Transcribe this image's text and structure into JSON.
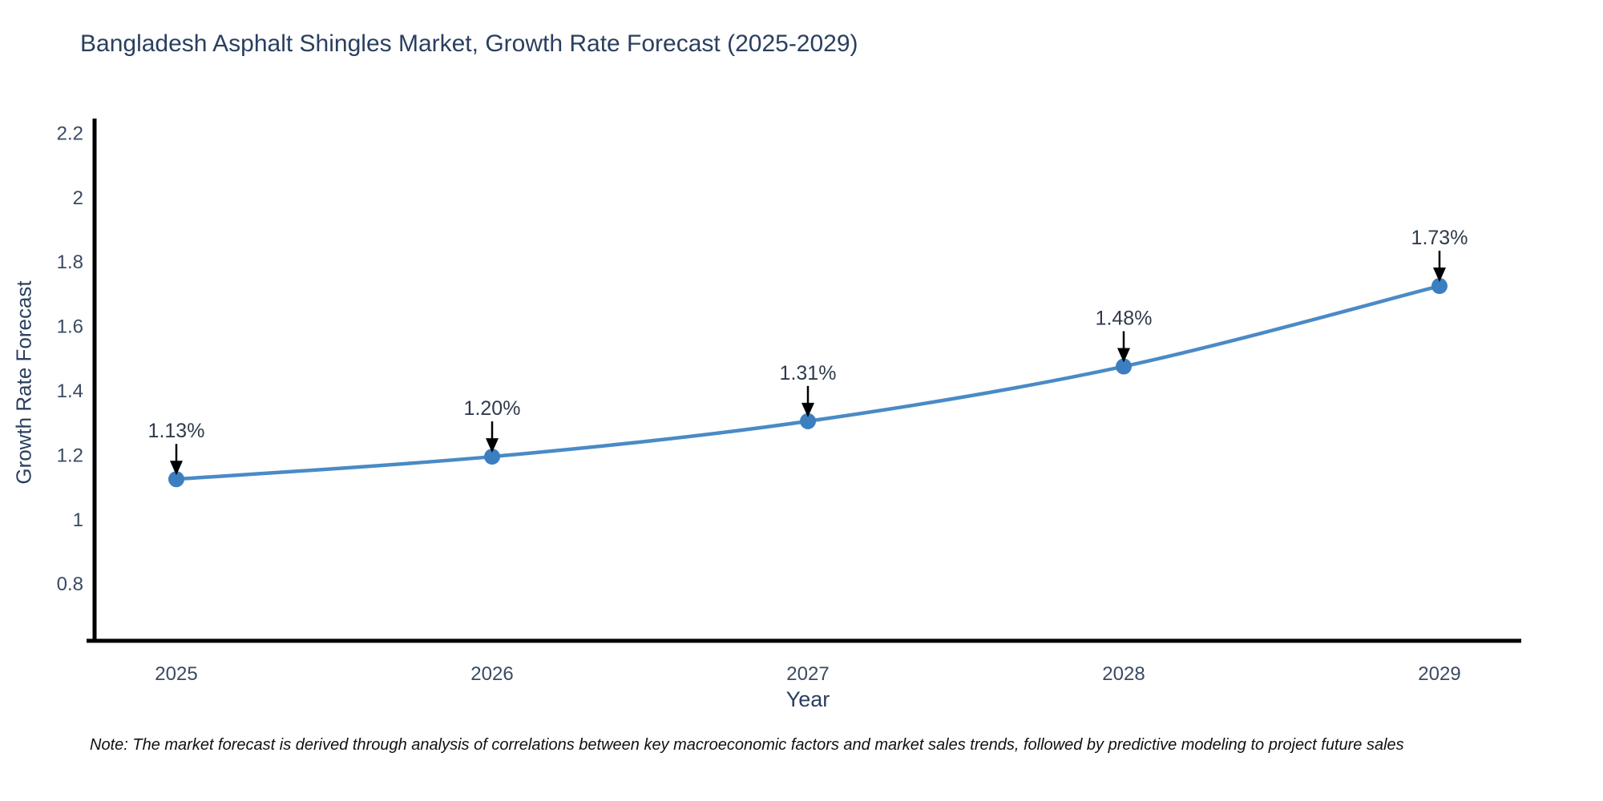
{
  "title": "Bangladesh Asphalt Shingles Market, Growth Rate Forecast (2025-2029)",
  "note": "Note: The market forecast is derived through analysis of correlations between key macroeconomic factors and market sales trends, followed by predictive modeling to project future sales",
  "colors": {
    "line": "#4a8ac6",
    "marker": "#3b7fc0",
    "axis": "#000000",
    "title_text": "#2a3f5f",
    "tick_text": "#3a4a63",
    "annotation_text": "#2f3b4c",
    "arrow": "#000000",
    "note_text": "#111111",
    "background": "#ffffff"
  },
  "chart_data": {
    "type": "line",
    "title": "Bangladesh Asphalt Shingles Market, Growth Rate Forecast (2025-2029)",
    "xlabel": "Year",
    "ylabel": "Growth Rate Forecast",
    "x": [
      "2025",
      "2026",
      "2027",
      "2028",
      "2029"
    ],
    "values": [
      1.13,
      1.2,
      1.31,
      1.48,
      1.73
    ],
    "point_labels": [
      "1.13%",
      "1.20%",
      "1.31%",
      "1.48%",
      "1.73%"
    ],
    "yticks": [
      0.8,
      1,
      1.2,
      1.4,
      1.6,
      1.8,
      2,
      2.2
    ],
    "ytick_labels": [
      "0.8",
      "1",
      "1.2",
      "1.4",
      "1.6",
      "1.8",
      "2",
      "2.2"
    ],
    "ylim": [
      0.628,
      2.25
    ],
    "grid": false,
    "legend_position": "none",
    "marker": "circle",
    "annotation_arrows": true
  }
}
